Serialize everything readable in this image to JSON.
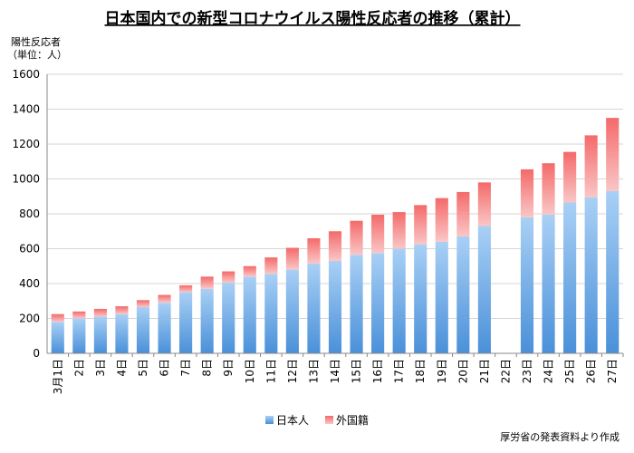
{
  "chart_data": {
    "type": "bar",
    "stacked": true,
    "title": "日本国内での新型コロナウイルス陽性反応者の推移（累計）",
    "ylabel_line1": "陽性反応者",
    "ylabel_line2": "（単位：人）",
    "xlabel": "",
    "ylim": [
      0,
      1600
    ],
    "yticks": [
      0,
      200,
      400,
      600,
      800,
      1000,
      1200,
      1400,
      1600
    ],
    "grid": true,
    "categories": [
      "3月1日",
      "2日",
      "3日",
      "4日",
      "5日",
      "6日",
      "7日",
      "8日",
      "9日",
      "10日",
      "11日",
      "12日",
      "13日",
      "14日",
      "15日",
      "16日",
      "17日",
      "18日",
      "19日",
      "20日",
      "21日",
      "22日",
      "23日",
      "24日",
      "25日",
      "26日",
      "27日"
    ],
    "series": [
      {
        "name": "日本人",
        "color_top": "#a9d0f5",
        "color_bottom": "#4a90d9",
        "values": [
          180,
          200,
          210,
          225,
          265,
          290,
          350,
          370,
          405,
          440,
          455,
          480,
          515,
          530,
          565,
          575,
          600,
          625,
          640,
          670,
          730,
          null,
          780,
          795,
          865,
          895,
          930
        ]
      },
      {
        "name": "外国籍",
        "color_top": "#f46a6a",
        "color_bottom": "#fac6c6",
        "values": [
          45,
          40,
          45,
          45,
          40,
          45,
          40,
          70,
          65,
          60,
          95,
          125,
          145,
          170,
          195,
          220,
          210,
          225,
          250,
          255,
          250,
          null,
          275,
          295,
          290,
          355,
          420
        ]
      }
    ],
    "legend_position": "bottom-center",
    "source_note": "厚労省の発表資料より作成"
  }
}
